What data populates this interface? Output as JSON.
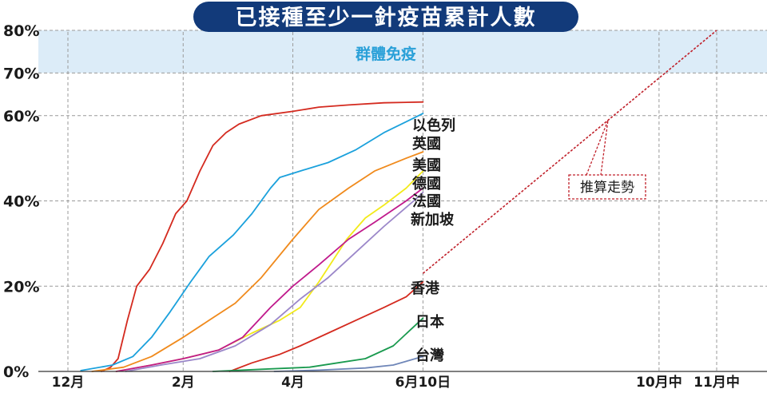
{
  "colors": {
    "title_bg": "#123a7a",
    "band_fill": "#dcecf8",
    "band_text": "#2aa0d8",
    "projection": "#c0202a"
  },
  "chart_data": {
    "type": "line",
    "title": "已接種至少一針疫苗累計人數",
    "xlabel": "",
    "ylabel": "",
    "y_unit": "%",
    "ylim": [
      0,
      80
    ],
    "x_domain": [
      "2020-12-01",
      "2021-12-01"
    ],
    "x_ticks": [
      {
        "label": "12月",
        "date": "2020-12-01"
      },
      {
        "label": "2月",
        "date": "2021-02-01"
      },
      {
        "label": "4月",
        "date": "2021-04-01"
      },
      {
        "label": "6月10日",
        "date": "2021-06-10"
      },
      {
        "label": "10月中",
        "date": "2021-10-15"
      },
      {
        "label": "11月中",
        "date": "2021-11-15"
      }
    ],
    "y_ticks": [
      {
        "label": "0%",
        "value": 0
      },
      {
        "label": "20%",
        "value": 20
      },
      {
        "label": "40%",
        "value": 40
      },
      {
        "label": "60%",
        "value": 60
      },
      {
        "label": "70%",
        "value": 70
      },
      {
        "label": "80%",
        "value": 80
      }
    ],
    "grid": true,
    "band": {
      "label": "群體免疫",
      "from": 70,
      "to": 80
    },
    "series": [
      {
        "name": "以色列",
        "color": "#d42a1f",
        "points": [
          [
            "2020-12-19",
            0
          ],
          [
            "2020-12-24",
            1
          ],
          [
            "2020-12-28",
            3
          ],
          [
            "2021-01-02",
            12
          ],
          [
            "2021-01-07",
            20
          ],
          [
            "2021-01-14",
            24
          ],
          [
            "2021-01-21",
            30
          ],
          [
            "2021-01-28",
            37
          ],
          [
            "2021-02-03",
            40
          ],
          [
            "2021-02-10",
            47
          ],
          [
            "2021-02-17",
            53
          ],
          [
            "2021-02-24",
            56
          ],
          [
            "2021-03-03",
            58
          ],
          [
            "2021-03-15",
            60
          ],
          [
            "2021-04-01",
            61
          ],
          [
            "2021-04-15",
            62
          ],
          [
            "2021-05-01",
            62.5
          ],
          [
            "2021-05-20",
            63
          ],
          [
            "2021-06-10",
            63.2
          ]
        ]
      },
      {
        "name": "英國",
        "color": "#1ba1dc",
        "points": [
          [
            "2020-12-08",
            0.2
          ],
          [
            "2020-12-25",
            1.5
          ],
          [
            "2021-01-05",
            3.5
          ],
          [
            "2021-01-15",
            8
          ],
          [
            "2021-01-25",
            14
          ],
          [
            "2021-02-05",
            21
          ],
          [
            "2021-02-15",
            27
          ],
          [
            "2021-02-28",
            32
          ],
          [
            "2021-03-10",
            37
          ],
          [
            "2021-03-20",
            43
          ],
          [
            "2021-03-25",
            45.5
          ],
          [
            "2021-04-05",
            47
          ],
          [
            "2021-04-20",
            49
          ],
          [
            "2021-05-05",
            52
          ],
          [
            "2021-05-20",
            56
          ],
          [
            "2021-06-10",
            60.5
          ]
        ]
      },
      {
        "name": "美國",
        "color": "#f08a1c",
        "points": [
          [
            "2020-12-14",
            0
          ],
          [
            "2020-12-31",
            1
          ],
          [
            "2021-01-15",
            3.5
          ],
          [
            "2021-02-01",
            8
          ],
          [
            "2021-02-15",
            12
          ],
          [
            "2021-03-01",
            16
          ],
          [
            "2021-03-15",
            22
          ],
          [
            "2021-04-01",
            31
          ],
          [
            "2021-04-15",
            38
          ],
          [
            "2021-05-01",
            43
          ],
          [
            "2021-05-15",
            47
          ],
          [
            "2021-06-01",
            50
          ],
          [
            "2021-06-10",
            51.5
          ]
        ]
      },
      {
        "name": "德國",
        "color": "#f2ea1a",
        "points": [
          [
            "2020-12-27",
            0
          ],
          [
            "2021-01-15",
            1.5
          ],
          [
            "2021-02-01",
            3
          ],
          [
            "2021-02-20",
            5
          ],
          [
            "2021-03-10",
            9
          ],
          [
            "2021-03-25",
            12
          ],
          [
            "2021-04-05",
            15
          ],
          [
            "2021-04-15",
            21
          ],
          [
            "2021-04-30",
            31
          ],
          [
            "2021-05-10",
            36
          ],
          [
            "2021-05-20",
            39
          ],
          [
            "2021-06-01",
            43
          ],
          [
            "2021-06-10",
            47
          ]
        ]
      },
      {
        "name": "法國",
        "color": "#c01a8c",
        "points": [
          [
            "2020-12-27",
            0
          ],
          [
            "2021-01-15",
            1.5
          ],
          [
            "2021-02-01",
            3
          ],
          [
            "2021-02-20",
            5
          ],
          [
            "2021-03-05",
            8
          ],
          [
            "2021-03-20",
            15
          ],
          [
            "2021-04-01",
            20
          ],
          [
            "2021-04-15",
            25
          ],
          [
            "2021-05-01",
            31
          ],
          [
            "2021-05-15",
            35
          ],
          [
            "2021-06-01",
            40
          ],
          [
            "2021-06-10",
            43
          ]
        ]
      },
      {
        "name": "新加坡",
        "color": "#9b87c9",
        "points": [
          [
            "2021-01-01",
            0
          ],
          [
            "2021-01-20",
            1.5
          ],
          [
            "2021-02-10",
            3
          ],
          [
            "2021-03-01",
            6
          ],
          [
            "2021-03-20",
            11
          ],
          [
            "2021-04-05",
            17
          ],
          [
            "2021-04-20",
            22
          ],
          [
            "2021-05-05",
            28
          ],
          [
            "2021-05-20",
            34
          ],
          [
            "2021-06-05",
            40
          ],
          [
            "2021-06-10",
            42
          ]
        ]
      },
      {
        "name": "香港",
        "color": "#d42a1f",
        "points": [
          [
            "2021-02-26",
            0
          ],
          [
            "2021-03-10",
            2
          ],
          [
            "2021-03-25",
            4
          ],
          [
            "2021-04-05",
            6
          ],
          [
            "2021-04-20",
            9
          ],
          [
            "2021-05-05",
            12
          ],
          [
            "2021-05-20",
            15
          ],
          [
            "2021-06-01",
            17.5
          ],
          [
            "2021-06-10",
            21
          ]
        ]
      },
      {
        "name": "日本",
        "color": "#1a9a4f",
        "points": [
          [
            "2021-02-17",
            0
          ],
          [
            "2021-03-15",
            0.5
          ],
          [
            "2021-04-10",
            1
          ],
          [
            "2021-04-25",
            2
          ],
          [
            "2021-05-10",
            3
          ],
          [
            "2021-05-25",
            6
          ],
          [
            "2021-06-10",
            12.5
          ]
        ]
      },
      {
        "name": "台灣",
        "color": "#6f86b8",
        "points": [
          [
            "2021-03-22",
            0
          ],
          [
            "2021-04-15",
            0.3
          ],
          [
            "2021-05-10",
            0.8
          ],
          [
            "2021-05-25",
            1.5
          ],
          [
            "2021-06-10",
            3.5
          ]
        ]
      }
    ],
    "projection": {
      "label": "推算走勢",
      "from": [
        "2021-06-10",
        23
      ],
      "to": [
        "2021-11-15",
        80
      ]
    }
  }
}
